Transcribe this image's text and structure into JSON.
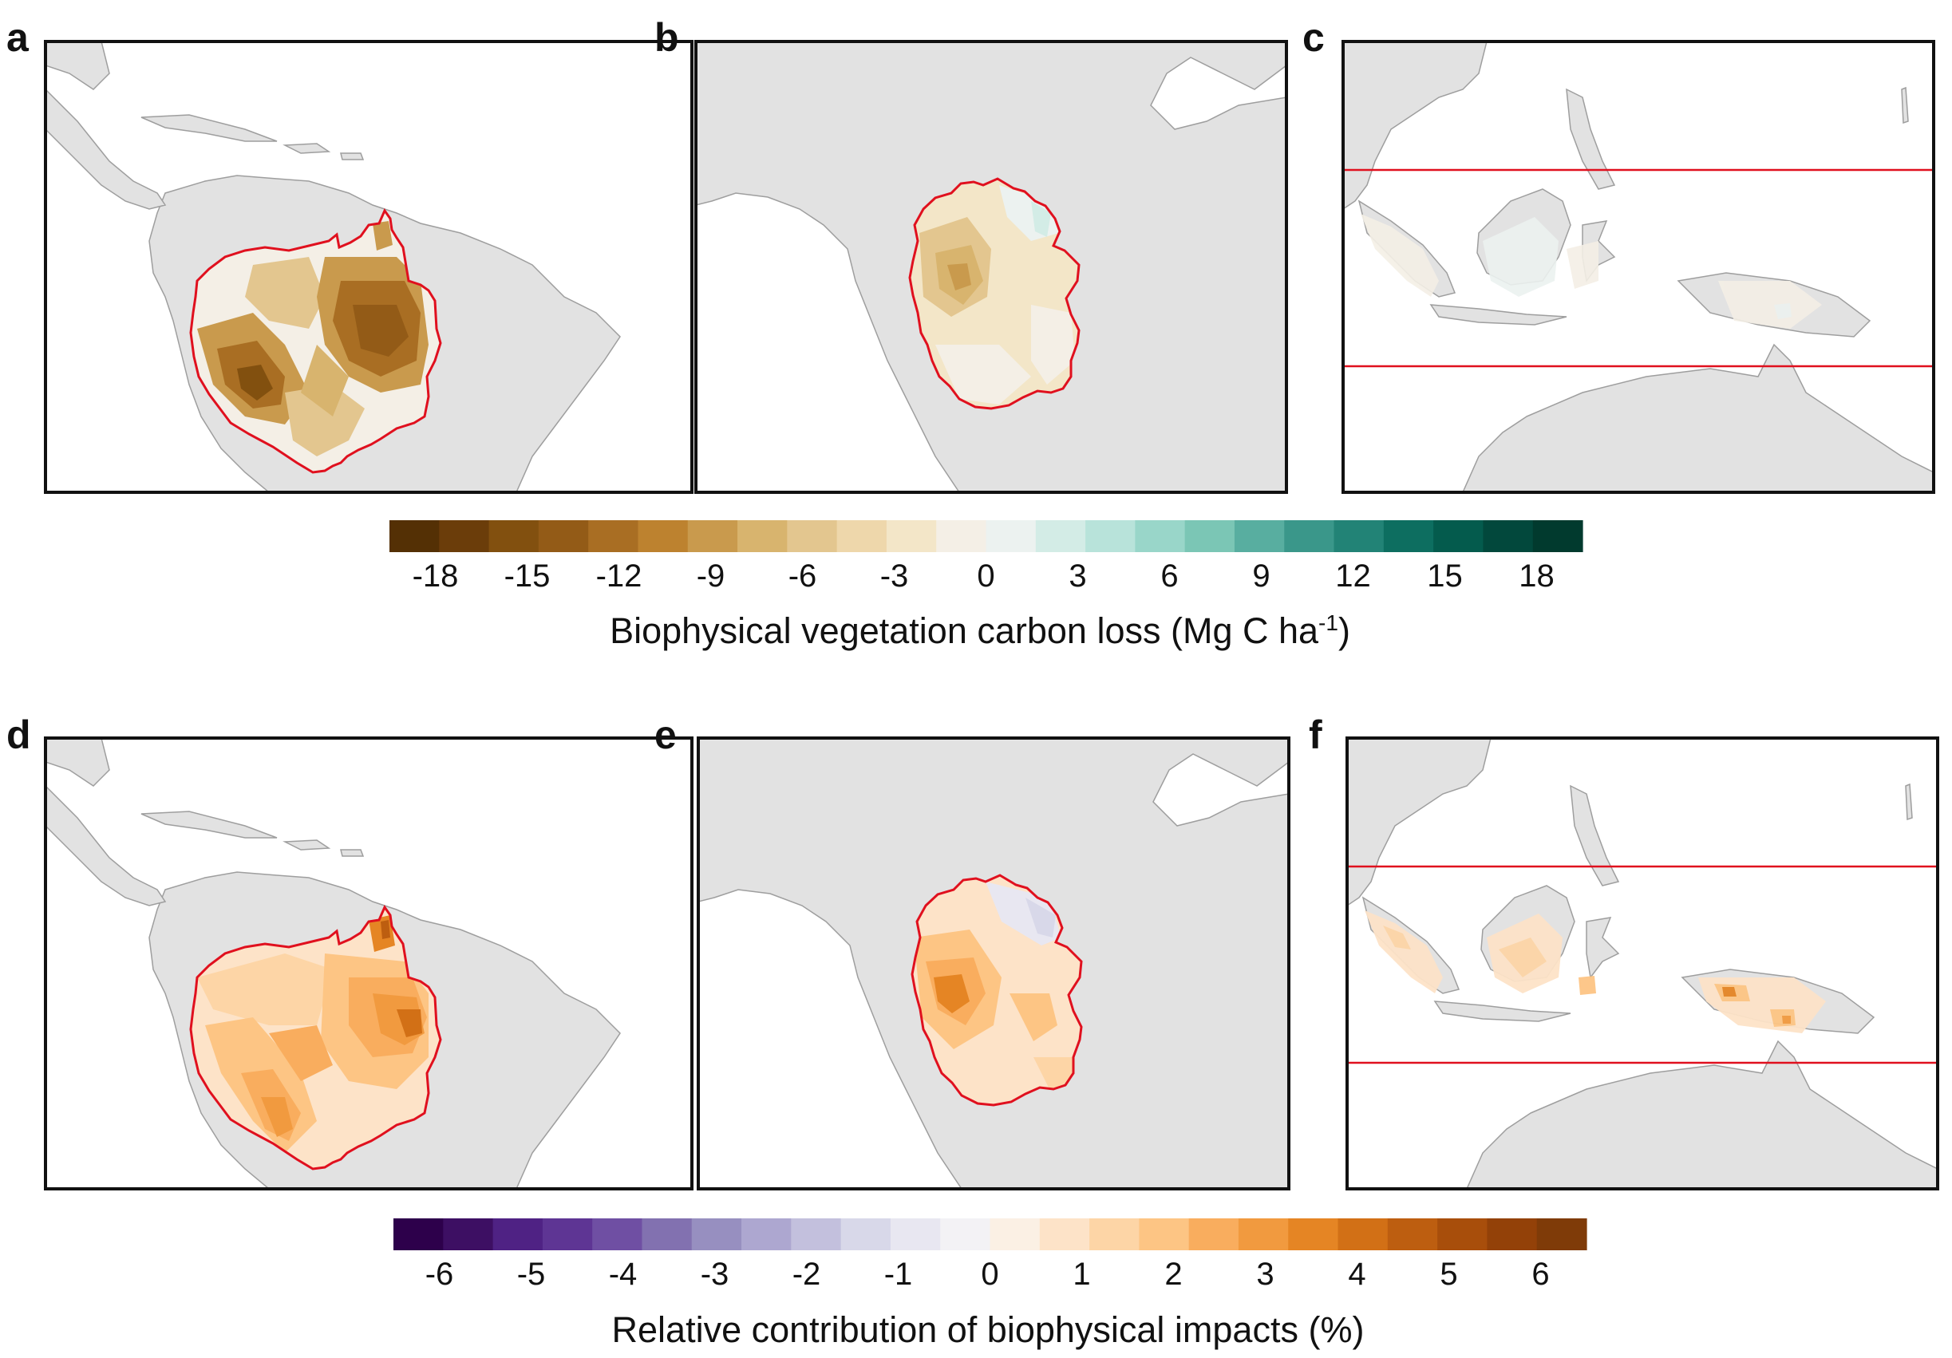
{
  "figure": {
    "panels": [
      {
        "label": "a",
        "region": "amazon",
        "row": "top"
      },
      {
        "label": "b",
        "region": "congo",
        "row": "top"
      },
      {
        "label": "c",
        "region": "southeast-asia",
        "row": "top"
      },
      {
        "label": "d",
        "region": "amazon",
        "row": "bottom"
      },
      {
        "label": "e",
        "region": "congo",
        "row": "bottom"
      },
      {
        "label": "f",
        "region": "southeast-asia",
        "row": "bottom"
      }
    ],
    "colorbars": [
      {
        "id": "carbon-loss",
        "title": "Biophysical vegetation carbon loss (Mg C ha",
        "title_sup": "-1",
        "title_end": ")",
        "ticks": [
          "-18",
          "-15",
          "-12",
          "-9",
          "-6",
          "-3",
          "0",
          "3",
          "6",
          "9",
          "12",
          "15",
          "18"
        ],
        "range": [
          -19.5,
          19.5
        ],
        "step": 1.5,
        "colors": [
          "#543005",
          "#6b3d0a",
          "#82500f",
          "#935b17",
          "#a96e23",
          "#bd822f",
          "#c99a4d",
          "#d8b46e",
          "#e3c68f",
          "#eed7ab",
          "#f3e6c8",
          "#f4efe6",
          "#ecf2f0",
          "#d3ece6",
          "#b8e3da",
          "#99d6c9",
          "#7bc6b5",
          "#58aea0",
          "#3a978a",
          "#228376",
          "#0d6e60",
          "#045b4d",
          "#02483c",
          "#013a2e"
        ],
        "marker_color": "#2b7a6e"
      },
      {
        "id": "relative-contribution",
        "title": "Relative contribution of biophysical impacts (%)",
        "ticks": [
          "-6",
          "-5",
          "-4",
          "-3",
          "-2",
          "-1",
          "0",
          "1",
          "2",
          "3",
          "4",
          "5",
          "6"
        ],
        "range": [
          -6.5,
          6.5
        ],
        "step": 0.5,
        "colors": [
          "#2d004b",
          "#3d0f63",
          "#4f2284",
          "#5e3594",
          "#6f4fa3",
          "#8271b0",
          "#978fc0",
          "#ada7d0",
          "#c3c0dd",
          "#d8d8e9",
          "#e8e7f1",
          "#f3f2f5",
          "#fbf0e4",
          "#fde3c8",
          "#fdd5a6",
          "#fdc584",
          "#f9ad5e",
          "#f19a3f",
          "#e58524",
          "#d27016",
          "#bd5e10",
          "#a84e0b",
          "#934108",
          "#7f3b08"
        ],
        "marker_color": "#7a4fa6"
      }
    ],
    "colors": {
      "land": "#e2e2e2",
      "coast": "#9e9e9e",
      "ocean": "#ffffff",
      "boundary": "#e0101e",
      "frame": "#111111"
    }
  }
}
